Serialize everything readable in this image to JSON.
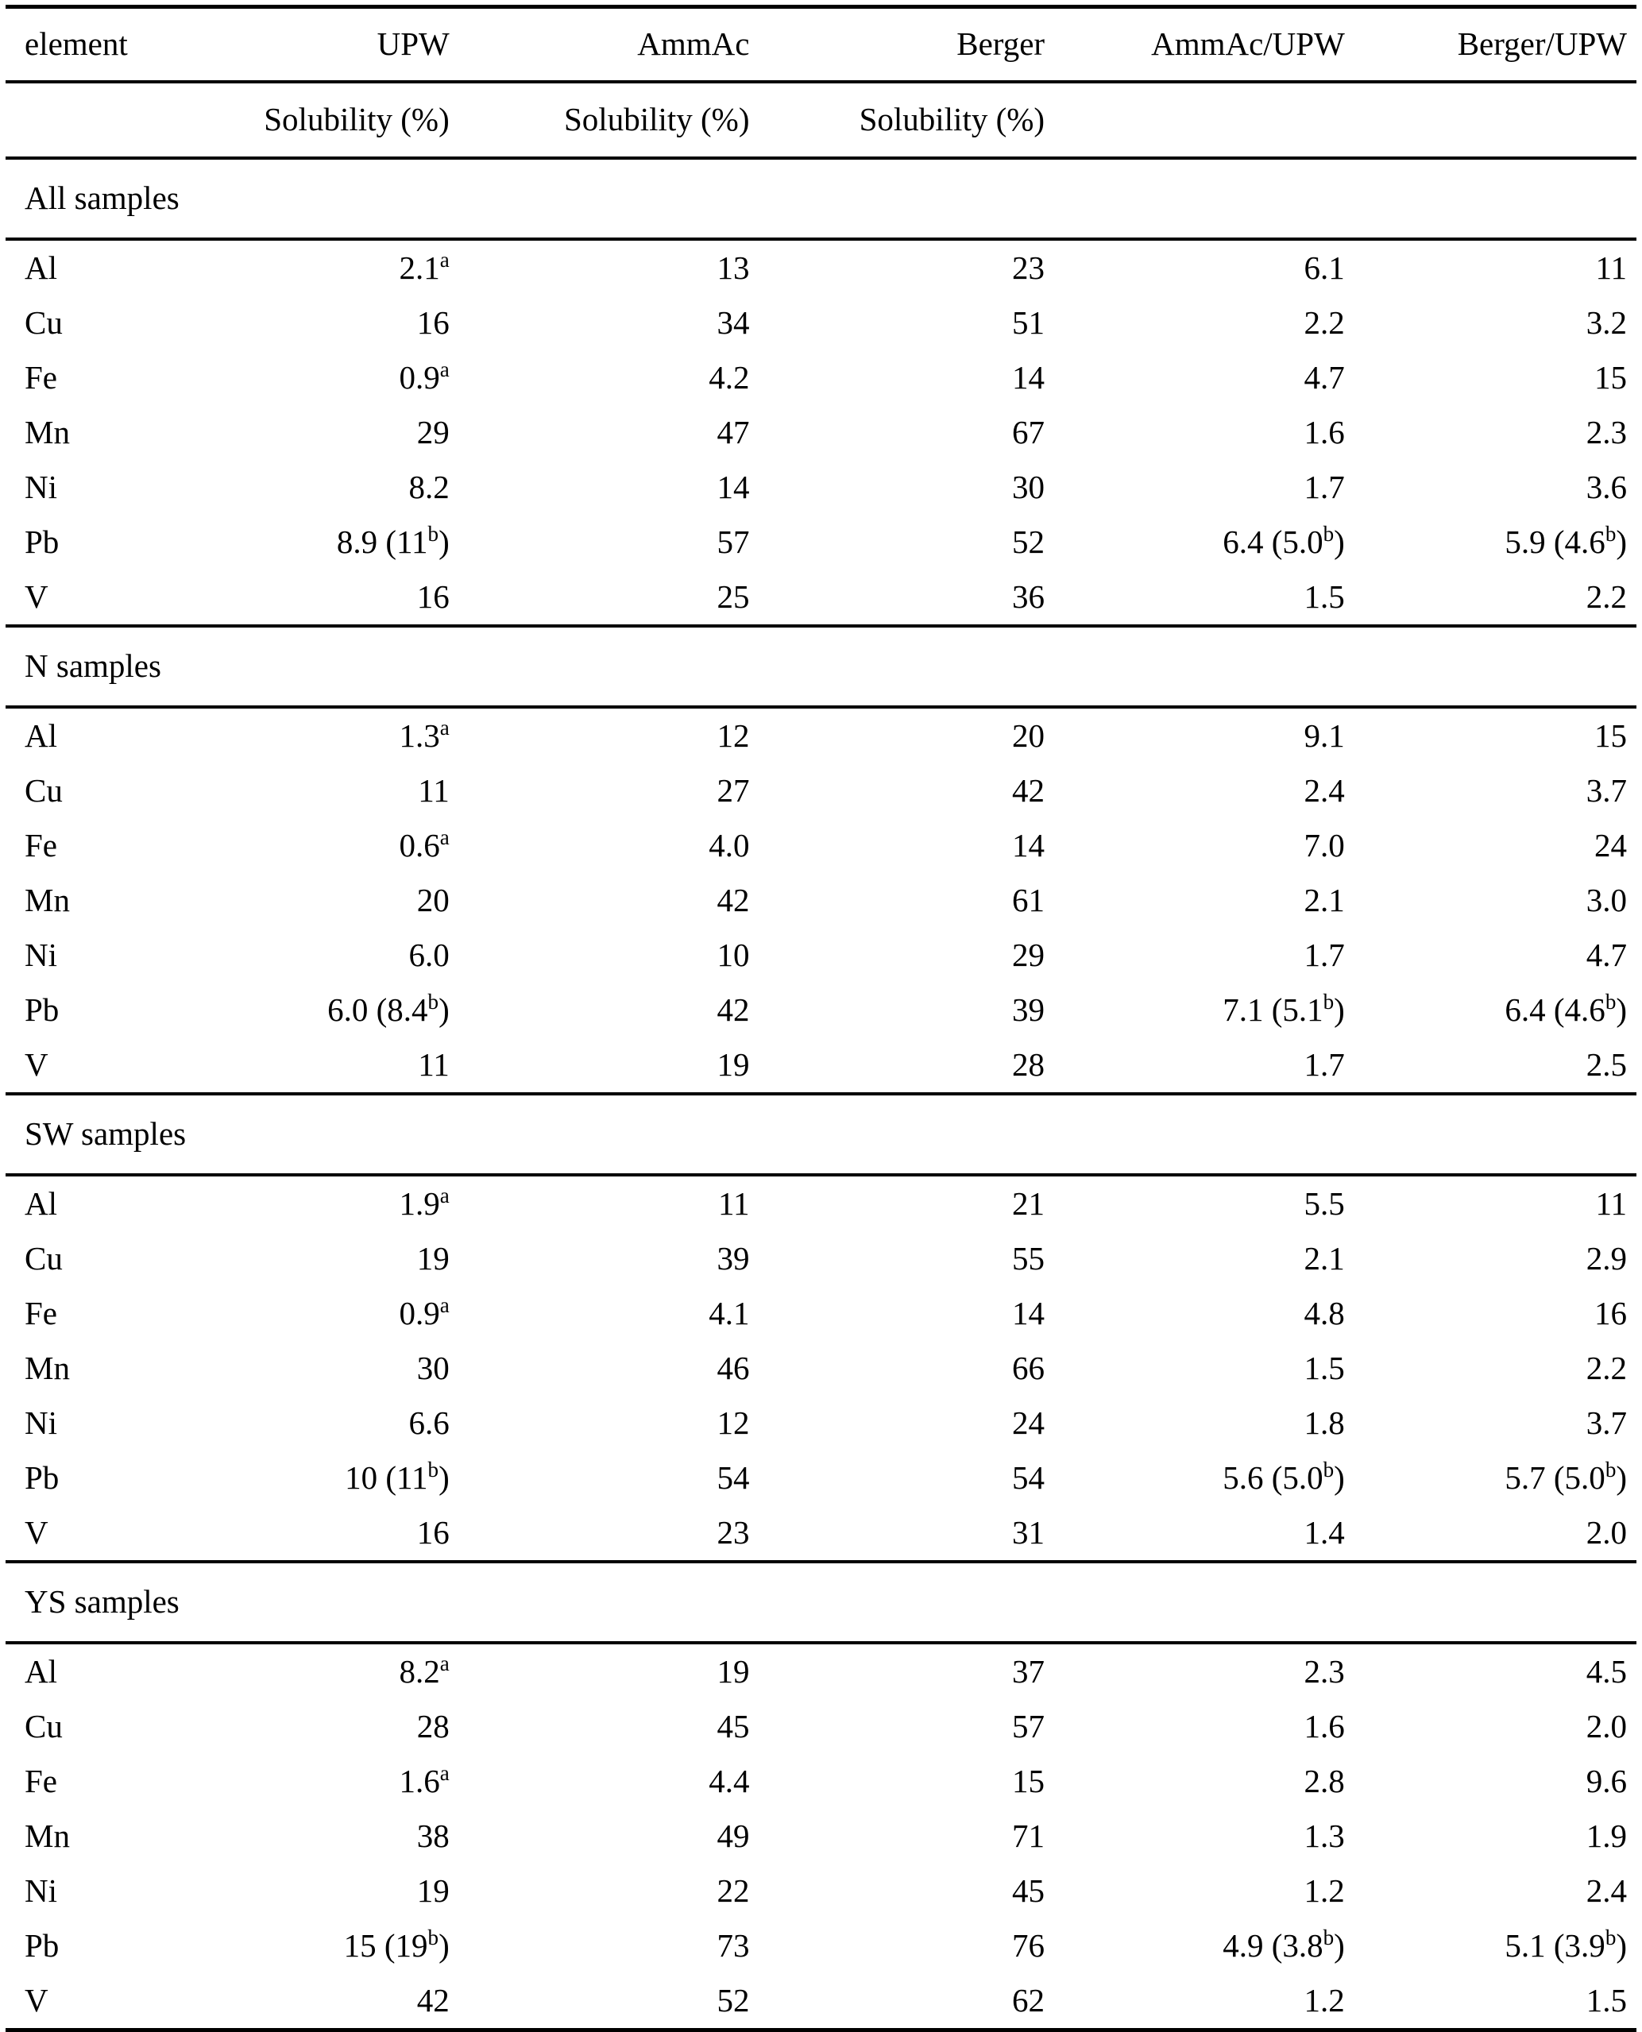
{
  "table": {
    "columns": [
      "element",
      "UPW",
      "AmmAc",
      "Berger",
      "AmmAc/UPW",
      "Berger/UPW"
    ],
    "subheader": [
      "",
      "Solubility (%)",
      "Solubility (%)",
      "Solubility (%)",
      "",
      ""
    ],
    "sections": [
      {
        "title": "All samples",
        "rows": [
          {
            "element": "Al",
            "values": [
              "2.1^a",
              "13",
              "23",
              "6.1",
              "11"
            ]
          },
          {
            "element": "Cu",
            "values": [
              "16",
              "34",
              "51",
              "2.2",
              "3.2"
            ]
          },
          {
            "element": "Fe",
            "values": [
              "0.9^a",
              "4.2",
              "14",
              "4.7",
              "15"
            ]
          },
          {
            "element": "Mn",
            "values": [
              "29",
              "47",
              "67",
              "1.6",
              "2.3"
            ]
          },
          {
            "element": "Ni",
            "values": [
              "8.2",
              "14",
              "30",
              "1.7",
              "3.6"
            ]
          },
          {
            "element": "Pb",
            "values": [
              "8.9 (11^b)",
              "57",
              "52",
              "6.4 (5.0^b)",
              "5.9 (4.6^b)"
            ]
          },
          {
            "element": "V",
            "values": [
              "16",
              "25",
              "36",
              "1.5",
              "2.2"
            ]
          }
        ]
      },
      {
        "title": "N samples",
        "rows": [
          {
            "element": "Al",
            "values": [
              "1.3^a",
              "12",
              "20",
              "9.1",
              "15"
            ]
          },
          {
            "element": "Cu",
            "values": [
              "11",
              "27",
              "42",
              "2.4",
              "3.7"
            ]
          },
          {
            "element": "Fe",
            "values": [
              "0.6^a",
              "4.0",
              "14",
              "7.0",
              "24"
            ]
          },
          {
            "element": "Mn",
            "values": [
              "20",
              "42",
              "61",
              "2.1",
              "3.0"
            ]
          },
          {
            "element": "Ni",
            "values": [
              "6.0",
              "10",
              "29",
              "1.7",
              "4.7"
            ]
          },
          {
            "element": "Pb",
            "values": [
              "6.0 (8.4^b)",
              "42",
              "39",
              "7.1 (5.1^b)",
              "6.4 (4.6^b)"
            ]
          },
          {
            "element": "V",
            "values": [
              "11",
              "19",
              "28",
              "1.7",
              "2.5"
            ]
          }
        ]
      },
      {
        "title": "SW samples",
        "rows": [
          {
            "element": "Al",
            "values": [
              "1.9^a",
              "11",
              "21",
              "5.5",
              "11"
            ]
          },
          {
            "element": "Cu",
            "values": [
              "19",
              "39",
              "55",
              "2.1",
              "2.9"
            ]
          },
          {
            "element": "Fe",
            "values": [
              "0.9^a",
              "4.1",
              "14",
              "4.8",
              "16"
            ]
          },
          {
            "element": "Mn",
            "values": [
              "30",
              "46",
              "66",
              "1.5",
              "2.2"
            ]
          },
          {
            "element": "Ni",
            "values": [
              "6.6",
              "12",
              "24",
              "1.8",
              "3.7"
            ]
          },
          {
            "element": "Pb",
            "values": [
              "10 (11^b)",
              "54",
              "54",
              "5.6 (5.0^b)",
              "5.7 (5.0^b)"
            ]
          },
          {
            "element": "V",
            "values": [
              "16",
              "23",
              "31",
              "1.4",
              "2.0"
            ]
          }
        ]
      },
      {
        "title": "YS samples",
        "rows": [
          {
            "element": "Al",
            "values": [
              "8.2^a",
              "19",
              "37",
              "2.3",
              "4.5"
            ]
          },
          {
            "element": "Cu",
            "values": [
              "28",
              "45",
              "57",
              "1.6",
              "2.0"
            ]
          },
          {
            "element": "Fe",
            "values": [
              "1.6^a",
              "4.4",
              "15",
              "2.8",
              "9.6"
            ]
          },
          {
            "element": "Mn",
            "values": [
              "38",
              "49",
              "71",
              "1.3",
              "1.9"
            ]
          },
          {
            "element": "Ni",
            "values": [
              "19",
              "22",
              "45",
              "1.2",
              "2.4"
            ]
          },
          {
            "element": "Pb",
            "values": [
              "15 (19^b)",
              "73",
              "76",
              "4.9 (3.8^b)",
              "5.1 (3.9^b)"
            ]
          },
          {
            "element": "V",
            "values": [
              "42",
              "52",
              "62",
              "1.2",
              "1.5"
            ]
          }
        ]
      }
    ]
  }
}
